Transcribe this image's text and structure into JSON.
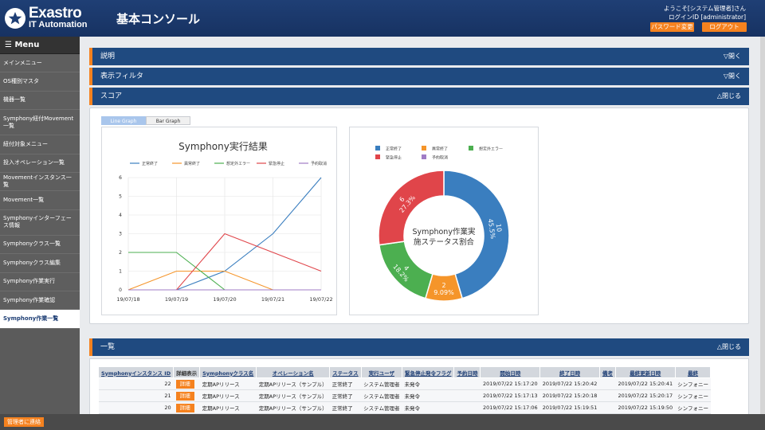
{
  "header": {
    "logo_name": "Exastro",
    "logo_sub": "IT Automation",
    "console_title": "基本コンソール",
    "welcome": "ようこそ[システム管理者]さん",
    "login_id": "ログインID [administrator]",
    "password_change": "パスワード変更",
    "logout": "ログアウト"
  },
  "sidebar": {
    "menu_title": "☰ Menu",
    "items": [
      {
        "label": "メインメニュー"
      },
      {
        "label": "OS種別マスタ"
      },
      {
        "label": "機器一覧"
      },
      {
        "label": "Symphony紐付Movement一覧"
      },
      {
        "label": "紐付対象メニュー"
      },
      {
        "label": "投入オペレーション一覧"
      },
      {
        "label": "Movementインスタンス一覧"
      },
      {
        "label": "Movement一覧"
      },
      {
        "label": "Symphonyインターフェース情報"
      },
      {
        "label": "Symphonyクラス一覧"
      },
      {
        "label": "Symphonyクラス編集"
      },
      {
        "label": "Symphony作業実行"
      },
      {
        "label": "Symphony作業確認"
      },
      {
        "label": "Symphony作業一覧"
      }
    ]
  },
  "footer": {
    "contact": "管理者に連絡"
  },
  "sections": {
    "description": {
      "title": "説明",
      "action": "▽開く"
    },
    "filter": {
      "title": "表示フィルタ",
      "action": "▽開く"
    },
    "score": {
      "title": "スコア",
      "action": "△閉じる"
    },
    "list": {
      "title": "一覧",
      "action": "△閉じる"
    }
  },
  "tabs": {
    "line": "Line Graph",
    "bar": "Bar Graph"
  },
  "colors": {
    "accent": "#f5821f",
    "header": "#1f3f75",
    "series": [
      "#3a7ebf",
      "#f5952a",
      "#4caf50",
      "#e0454a",
      "#a07cc5"
    ]
  },
  "chart_data": [
    {
      "type": "line",
      "title": "Symphony実行結果",
      "x": [
        "19/07/18",
        "19/07/19",
        "19/07/20",
        "19/07/21",
        "19/07/22"
      ],
      "ylim": [
        0,
        6
      ],
      "yticks": [
        "0",
        "1",
        "2",
        "3",
        "4",
        "5",
        "6"
      ],
      "series": [
        {
          "name": "正常終了",
          "values": [
            0,
            0,
            1,
            3,
            6
          ]
        },
        {
          "name": "異常終了",
          "values": [
            0,
            1,
            1,
            0,
            0
          ]
        },
        {
          "name": "想定外エラー",
          "values": [
            2,
            2,
            0,
            0,
            0
          ]
        },
        {
          "name": "緊急停止",
          "values": [
            0,
            0,
            3,
            2,
            1
          ]
        },
        {
          "name": "予約取消",
          "values": [
            0,
            0,
            0,
            0,
            0
          ]
        }
      ],
      "grid": true,
      "legend": "top"
    },
    {
      "type": "pie",
      "title": "Symphony作業実施ステータス割合",
      "legend": [
        "正常終了",
        "異常終了",
        "想定外エラー",
        "緊急停止",
        "予約取消"
      ],
      "slices": [
        {
          "name": "正常終了",
          "value": 10,
          "label": "45.5%"
        },
        {
          "name": "異常終了",
          "value": 2,
          "label": "9.09%"
        },
        {
          "name": "想定外エラー",
          "value": 4,
          "label": "18.2%"
        },
        {
          "name": "緊急停止",
          "value": 6,
          "label": "27.3%"
        }
      ]
    }
  ],
  "table": {
    "headers": [
      "Symphonyインスタンス ID",
      "詳細表示",
      "Symphonyクラス名",
      "オペレーション名",
      "ステータス",
      "実行ユーザ",
      "緊急停止発令フラグ",
      "予約日時",
      "開始日時",
      "終了日時",
      "備考",
      "最終更新日時",
      "最終"
    ],
    "detail_label": "詳細",
    "rows": [
      [
        "22",
        "定期APリリース",
        "定期APリリース（サンプル）",
        "正常終了",
        "システム管理者",
        "未発令",
        "",
        "2019/07/22 15:17:20",
        "2019/07/22 15:20:42",
        "",
        "2019/07/22 15:20:41",
        "シンフォニー"
      ],
      [
        "21",
        "定期APリリース",
        "定期APリリース（サンプル）",
        "正常終了",
        "システム管理者",
        "未発令",
        "",
        "2019/07/22 15:17:13",
        "2019/07/22 15:20:18",
        "",
        "2019/07/22 15:20:17",
        "シンフォニー"
      ],
      [
        "20",
        "定期APリリース",
        "定期APリリース（サンプル）",
        "正常終了",
        "システム管理者",
        "未発令",
        "",
        "2019/07/22 15:17:06",
        "2019/07/22 15:19:51",
        "",
        "2019/07/22 15:19:50",
        "シンフォニー"
      ]
    ]
  }
}
